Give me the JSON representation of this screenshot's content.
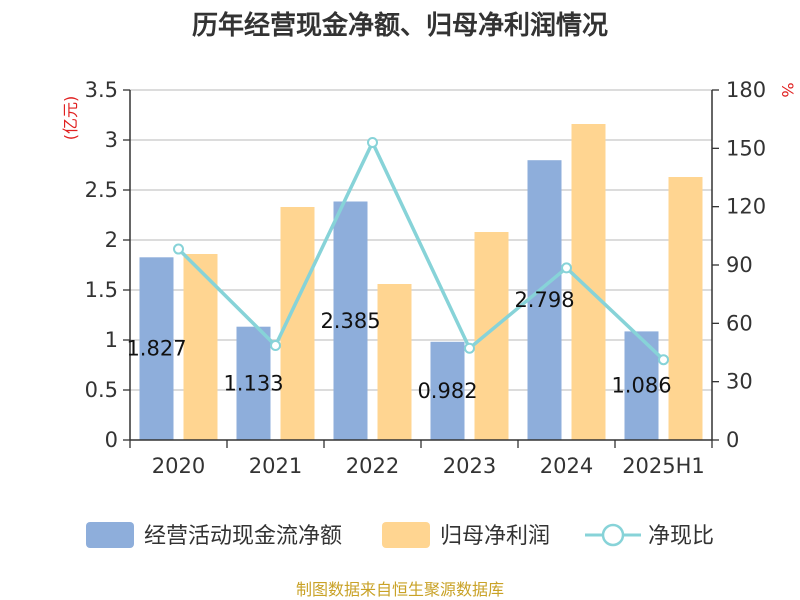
{
  "chart_data": {
    "type": "bar",
    "title": "历年经营现金净额、归母净利润情况",
    "categories": [
      "2020",
      "2021",
      "2022",
      "2023",
      "2024",
      "2025H1"
    ],
    "y_left": {
      "unit": "(亿元)",
      "ticks": [
        "0",
        "0.5",
        "1",
        "1.5",
        "2",
        "2.5",
        "3",
        "3.5"
      ],
      "ylim": [
        0,
        3.5
      ]
    },
    "y_right": {
      "unit": "%",
      "ticks": [
        "0",
        "30",
        "60",
        "90",
        "120",
        "150",
        "180"
      ],
      "ylim": [
        0,
        180
      ]
    },
    "series": [
      {
        "name": "经营活动现金流净额",
        "type": "bar",
        "axis": "left",
        "color": "#8eaedb",
        "values": [
          1.827,
          1.133,
          2.385,
          0.982,
          2.798,
          1.086
        ],
        "labels": [
          "1.827",
          "1.133",
          "2.385",
          "0.982",
          "2.798",
          "1.086"
        ]
      },
      {
        "name": "归母净利润",
        "type": "bar",
        "axis": "left",
        "color": "#ffd591",
        "values": [
          1.86,
          2.33,
          1.56,
          2.08,
          3.16,
          2.63
        ]
      },
      {
        "name": "净现比",
        "type": "line",
        "axis": "right",
        "color": "#87d3d8",
        "values": [
          98.2,
          48.6,
          153.0,
          47.2,
          88.5,
          41.3
        ]
      }
    ],
    "grid": true,
    "legend_position": "bottom"
  },
  "footer": {
    "source": "制图数据来自恒生聚源数据库"
  }
}
